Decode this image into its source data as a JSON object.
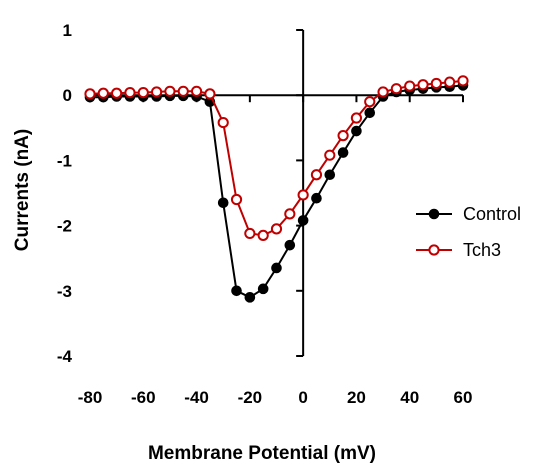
{
  "chart_data": {
    "type": "line",
    "title": "",
    "xlabel": "Membrane Potential (mV)",
    "ylabel": "Currents (nA)",
    "xlim": [
      -80,
      60
    ],
    "ylim": [
      -4,
      1
    ],
    "x_ticks": [
      -80,
      -60,
      -40,
      -20,
      0,
      20,
      40,
      60
    ],
    "x_tick_labels": [
      "-80",
      "-60",
      "-40",
      "-20",
      "0",
      "20",
      "40",
      "60"
    ],
    "y_ticks": [
      1,
      0,
      -1,
      -2,
      -3,
      -4
    ],
    "y_tick_labels": [
      "1",
      "0",
      "-1",
      "-2",
      "-3",
      "-4"
    ],
    "grid": false,
    "legend_position": "right",
    "x": [
      -80,
      -75,
      -70,
      -65,
      -60,
      -55,
      -50,
      -45,
      -40,
      -35,
      -30,
      -25,
      -20,
      -15,
      -10,
      -5,
      0,
      5,
      10,
      15,
      20,
      25,
      30,
      35,
      40,
      45,
      50,
      55,
      60
    ],
    "series": [
      {
        "name": "Control",
        "color": "#000000",
        "marker": "filled-circle",
        "values": [
          -0.03,
          -0.03,
          -0.02,
          -0.02,
          -0.02,
          -0.02,
          -0.01,
          -0.01,
          -0.02,
          -0.1,
          -1.65,
          -3.0,
          -3.1,
          -2.97,
          -2.65,
          -2.3,
          -1.92,
          -1.58,
          -1.22,
          -0.88,
          -0.55,
          -0.27,
          -0.02,
          0.05,
          0.08,
          0.1,
          0.12,
          0.13,
          0.15
        ]
      },
      {
        "name": "Tch3",
        "color": "#c00000",
        "marker": "open-circle",
        "values": [
          0.02,
          0.03,
          0.03,
          0.04,
          0.04,
          0.05,
          0.06,
          0.06,
          0.06,
          0.02,
          -0.42,
          -1.6,
          -2.12,
          -2.15,
          -2.05,
          -1.82,
          -1.53,
          -1.22,
          -0.92,
          -0.62,
          -0.35,
          -0.1,
          0.05,
          0.1,
          0.14,
          0.16,
          0.18,
          0.2,
          0.22
        ]
      }
    ]
  }
}
